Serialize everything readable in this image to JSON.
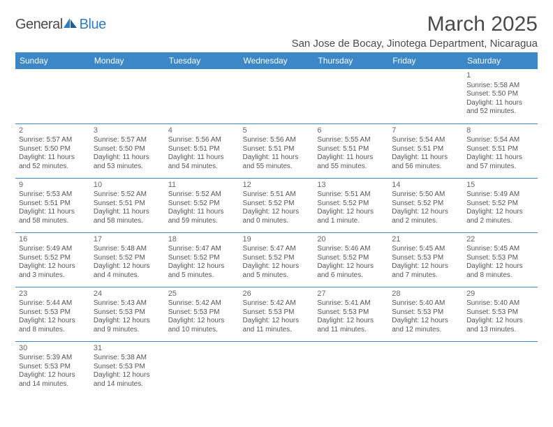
{
  "logo": {
    "general": "General",
    "blue": "Blue"
  },
  "title": "March 2025",
  "location": "San Jose de Bocay, Jinotega Department, Nicaragua",
  "colors": {
    "header_bg": "#3b87c8",
    "header_text": "#ffffff",
    "cell_border": "#3b87c8",
    "body_text": "#555555",
    "title_text": "#4a4a4a",
    "brand_blue": "#2f7cc0"
  },
  "weekdays": [
    "Sunday",
    "Monday",
    "Tuesday",
    "Wednesday",
    "Thursday",
    "Friday",
    "Saturday"
  ],
  "weeks": [
    [
      null,
      null,
      null,
      null,
      null,
      null,
      {
        "n": "1",
        "sr": "Sunrise: 5:58 AM",
        "ss": "Sunset: 5:50 PM",
        "d1": "Daylight: 11 hours",
        "d2": "and 52 minutes."
      }
    ],
    [
      {
        "n": "2",
        "sr": "Sunrise: 5:57 AM",
        "ss": "Sunset: 5:50 PM",
        "d1": "Daylight: 11 hours",
        "d2": "and 52 minutes."
      },
      {
        "n": "3",
        "sr": "Sunrise: 5:57 AM",
        "ss": "Sunset: 5:50 PM",
        "d1": "Daylight: 11 hours",
        "d2": "and 53 minutes."
      },
      {
        "n": "4",
        "sr": "Sunrise: 5:56 AM",
        "ss": "Sunset: 5:51 PM",
        "d1": "Daylight: 11 hours",
        "d2": "and 54 minutes."
      },
      {
        "n": "5",
        "sr": "Sunrise: 5:56 AM",
        "ss": "Sunset: 5:51 PM",
        "d1": "Daylight: 11 hours",
        "d2": "and 55 minutes."
      },
      {
        "n": "6",
        "sr": "Sunrise: 5:55 AM",
        "ss": "Sunset: 5:51 PM",
        "d1": "Daylight: 11 hours",
        "d2": "and 55 minutes."
      },
      {
        "n": "7",
        "sr": "Sunrise: 5:54 AM",
        "ss": "Sunset: 5:51 PM",
        "d1": "Daylight: 11 hours",
        "d2": "and 56 minutes."
      },
      {
        "n": "8",
        "sr": "Sunrise: 5:54 AM",
        "ss": "Sunset: 5:51 PM",
        "d1": "Daylight: 11 hours",
        "d2": "and 57 minutes."
      }
    ],
    [
      {
        "n": "9",
        "sr": "Sunrise: 5:53 AM",
        "ss": "Sunset: 5:51 PM",
        "d1": "Daylight: 11 hours",
        "d2": "and 58 minutes."
      },
      {
        "n": "10",
        "sr": "Sunrise: 5:52 AM",
        "ss": "Sunset: 5:51 PM",
        "d1": "Daylight: 11 hours",
        "d2": "and 58 minutes."
      },
      {
        "n": "11",
        "sr": "Sunrise: 5:52 AM",
        "ss": "Sunset: 5:52 PM",
        "d1": "Daylight: 11 hours",
        "d2": "and 59 minutes."
      },
      {
        "n": "12",
        "sr": "Sunrise: 5:51 AM",
        "ss": "Sunset: 5:52 PM",
        "d1": "Daylight: 12 hours",
        "d2": "and 0 minutes."
      },
      {
        "n": "13",
        "sr": "Sunrise: 5:51 AM",
        "ss": "Sunset: 5:52 PM",
        "d1": "Daylight: 12 hours",
        "d2": "and 1 minute."
      },
      {
        "n": "14",
        "sr": "Sunrise: 5:50 AM",
        "ss": "Sunset: 5:52 PM",
        "d1": "Daylight: 12 hours",
        "d2": "and 2 minutes."
      },
      {
        "n": "15",
        "sr": "Sunrise: 5:49 AM",
        "ss": "Sunset: 5:52 PM",
        "d1": "Daylight: 12 hours",
        "d2": "and 2 minutes."
      }
    ],
    [
      {
        "n": "16",
        "sr": "Sunrise: 5:49 AM",
        "ss": "Sunset: 5:52 PM",
        "d1": "Daylight: 12 hours",
        "d2": "and 3 minutes."
      },
      {
        "n": "17",
        "sr": "Sunrise: 5:48 AM",
        "ss": "Sunset: 5:52 PM",
        "d1": "Daylight: 12 hours",
        "d2": "and 4 minutes."
      },
      {
        "n": "18",
        "sr": "Sunrise: 5:47 AM",
        "ss": "Sunset: 5:52 PM",
        "d1": "Daylight: 12 hours",
        "d2": "and 5 minutes."
      },
      {
        "n": "19",
        "sr": "Sunrise: 5:47 AM",
        "ss": "Sunset: 5:52 PM",
        "d1": "Daylight: 12 hours",
        "d2": "and 5 minutes."
      },
      {
        "n": "20",
        "sr": "Sunrise: 5:46 AM",
        "ss": "Sunset: 5:52 PM",
        "d1": "Daylight: 12 hours",
        "d2": "and 6 minutes."
      },
      {
        "n": "21",
        "sr": "Sunrise: 5:45 AM",
        "ss": "Sunset: 5:53 PM",
        "d1": "Daylight: 12 hours",
        "d2": "and 7 minutes."
      },
      {
        "n": "22",
        "sr": "Sunrise: 5:45 AM",
        "ss": "Sunset: 5:53 PM",
        "d1": "Daylight: 12 hours",
        "d2": "and 8 minutes."
      }
    ],
    [
      {
        "n": "23",
        "sr": "Sunrise: 5:44 AM",
        "ss": "Sunset: 5:53 PM",
        "d1": "Daylight: 12 hours",
        "d2": "and 8 minutes."
      },
      {
        "n": "24",
        "sr": "Sunrise: 5:43 AM",
        "ss": "Sunset: 5:53 PM",
        "d1": "Daylight: 12 hours",
        "d2": "and 9 minutes."
      },
      {
        "n": "25",
        "sr": "Sunrise: 5:42 AM",
        "ss": "Sunset: 5:53 PM",
        "d1": "Daylight: 12 hours",
        "d2": "and 10 minutes."
      },
      {
        "n": "26",
        "sr": "Sunrise: 5:42 AM",
        "ss": "Sunset: 5:53 PM",
        "d1": "Daylight: 12 hours",
        "d2": "and 11 minutes."
      },
      {
        "n": "27",
        "sr": "Sunrise: 5:41 AM",
        "ss": "Sunset: 5:53 PM",
        "d1": "Daylight: 12 hours",
        "d2": "and 11 minutes."
      },
      {
        "n": "28",
        "sr": "Sunrise: 5:40 AM",
        "ss": "Sunset: 5:53 PM",
        "d1": "Daylight: 12 hours",
        "d2": "and 12 minutes."
      },
      {
        "n": "29",
        "sr": "Sunrise: 5:40 AM",
        "ss": "Sunset: 5:53 PM",
        "d1": "Daylight: 12 hours",
        "d2": "and 13 minutes."
      }
    ],
    [
      {
        "n": "30",
        "sr": "Sunrise: 5:39 AM",
        "ss": "Sunset: 5:53 PM",
        "d1": "Daylight: 12 hours",
        "d2": "and 14 minutes."
      },
      {
        "n": "31",
        "sr": "Sunrise: 5:38 AM",
        "ss": "Sunset: 5:53 PM",
        "d1": "Daylight: 12 hours",
        "d2": "and 14 minutes."
      },
      null,
      null,
      null,
      null,
      null
    ]
  ]
}
